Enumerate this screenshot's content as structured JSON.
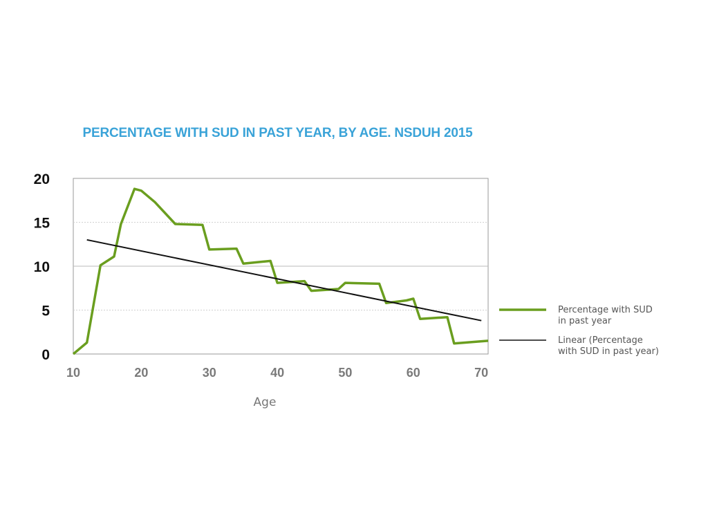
{
  "chart_data": {
    "type": "line",
    "title": "PERCENTAGE WITH SUD IN PAST YEAR, BY AGE. NSDUH 2015",
    "xlabel": "Age",
    "ylabel": "",
    "xlim": [
      10,
      71
    ],
    "ylim": [
      0,
      20
    ],
    "xticks": [
      "10",
      "20",
      "30",
      "40",
      "50",
      "60",
      "70"
    ],
    "yticks": [
      "20",
      "15",
      "10",
      "5",
      "0"
    ],
    "grid": true,
    "legend_position": "right",
    "series": [
      {
        "name": "Percentage with SUD in past year",
        "color": "#6a9e1f",
        "x": [
          10,
          12,
          14,
          16,
          17,
          19,
          20,
          22,
          25,
          29,
          30,
          34,
          35,
          39,
          40,
          44,
          45,
          49,
          50,
          55,
          56,
          59,
          60,
          61,
          65,
          66,
          71
        ],
        "values": [
          0.0,
          1.3,
          10.1,
          11.1,
          14.8,
          18.8,
          18.6,
          17.3,
          14.8,
          14.7,
          11.9,
          12.0,
          10.3,
          10.6,
          8.1,
          8.3,
          7.2,
          7.4,
          8.1,
          8.0,
          5.8,
          6.1,
          6.3,
          4.0,
          4.2,
          1.2,
          1.5
        ]
      },
      {
        "name": "Linear (Percentage with SUD in past year)",
        "color": "#111111",
        "x": [
          12,
          70
        ],
        "values": [
          13.0,
          3.8
        ]
      }
    ]
  },
  "legend": {
    "items": [
      {
        "lines": [
          "Percentage with SUD",
          "in past year"
        ]
      },
      {
        "lines": [
          "Linear (Percentage",
          "with SUD in past year)"
        ]
      }
    ]
  }
}
